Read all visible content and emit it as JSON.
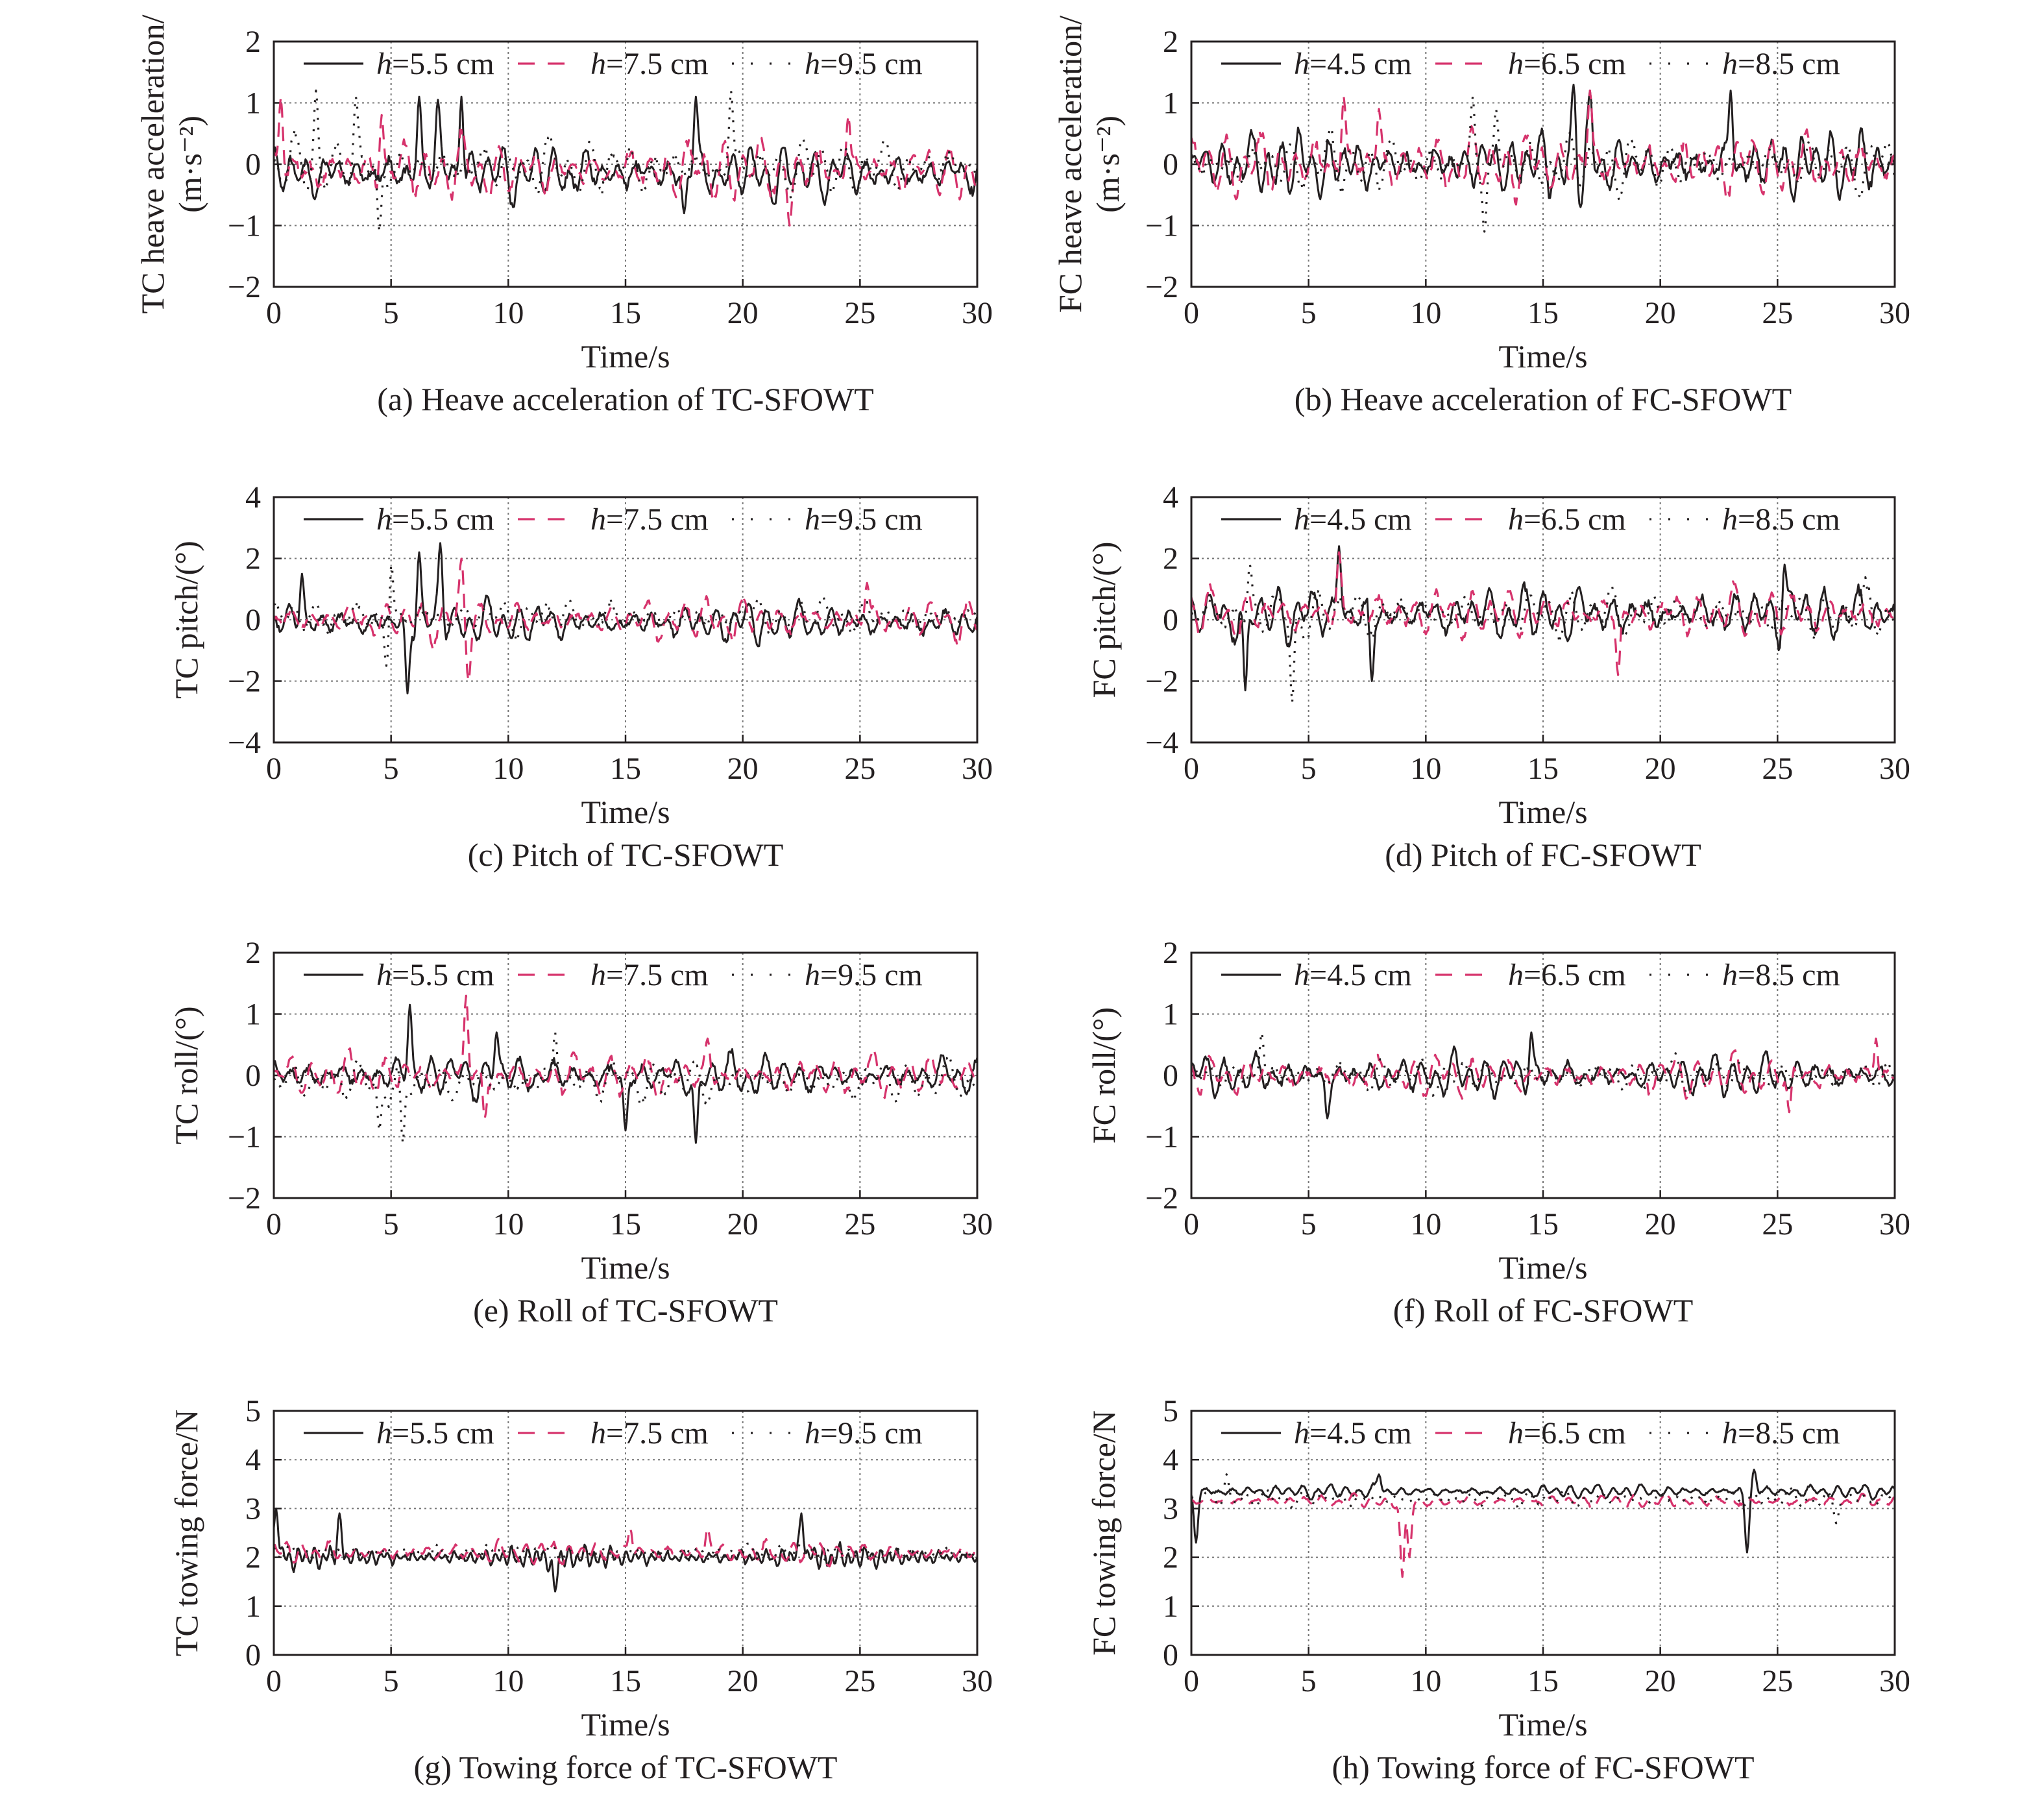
{
  "panels": [
    {
      "caption": "(a) Heave acceleration of TC-SFOWT",
      "chart_data": {
        "type": "line",
        "ylabel_line1": "TC heave acceleration/",
        "ylabel_line2": "(m·s⁻²)",
        "xlabel": "Time/s",
        "xlim": [
          0,
          30
        ],
        "ylim": [
          -2,
          2
        ],
        "xticks": [
          "0",
          "5",
          "10",
          "15",
          "20",
          "25",
          "30"
        ],
        "yticks": [
          "−2",
          "−1",
          "0",
          "1",
          "2"
        ],
        "legend_position": "top",
        "grid": true,
        "series": [
          {
            "name": "h=5.5 cm",
            "style": "solid",
            "color": "#231f20",
            "amplitude": 0.4,
            "mean": -0.15,
            "period": 0.7,
            "seed": 11,
            "peaks": [
              [
                6.2,
                1.1
              ],
              [
                7.0,
                1.05
              ],
              [
                8.0,
                1.1
              ],
              [
                18.0,
                1.1
              ],
              [
                17.5,
                -0.8
              ]
            ]
          },
          {
            "name": "h=7.5 cm",
            "style": "dashed",
            "color": "#d6336c",
            "amplitude": 0.45,
            "mean": -0.1,
            "period": 0.8,
            "seed": 23,
            "peaks": [
              [
                0.3,
                1.1
              ],
              [
                4.6,
                0.8
              ],
              [
                24.5,
                0.8
              ],
              [
                22.0,
                -1.0
              ]
            ]
          },
          {
            "name": "h=9.5 cm",
            "style": "dotted",
            "color": "#231f20",
            "amplitude": 0.4,
            "mean": -0.05,
            "period": 0.9,
            "seed": 37,
            "peaks": [
              [
                1.8,
                1.2
              ],
              [
                3.5,
                1.1
              ],
              [
                19.5,
                1.2
              ],
              [
                4.5,
                -1.1
              ]
            ]
          }
        ]
      }
    },
    {
      "caption": "(b) Heave acceleration of FC-SFOWT",
      "chart_data": {
        "type": "line",
        "ylabel_line1": "FC heave acceleration/",
        "ylabel_line2": "(m·s⁻²)",
        "xlabel": "Time/s",
        "xlim": [
          0,
          30
        ],
        "ylim": [
          -2,
          2
        ],
        "xticks": [
          "0",
          "5",
          "10",
          "15",
          "20",
          "25",
          "30"
        ],
        "yticks": [
          "−2",
          "−1",
          "0",
          "1",
          "2"
        ],
        "legend_position": "top",
        "grid": true,
        "series": [
          {
            "name": "h=4.5 cm",
            "style": "solid",
            "color": "#231f20",
            "amplitude": 0.45,
            "mean": 0.0,
            "period": 0.65,
            "seed": 41,
            "peaks": [
              [
                16.3,
                1.3
              ],
              [
                16.6,
                -0.7
              ],
              [
                23.0,
                1.2
              ],
              [
                17.0,
                1.2
              ]
            ]
          },
          {
            "name": "h=6.5 cm",
            "style": "dashed",
            "color": "#d6336c",
            "amplitude": 0.45,
            "mean": 0.0,
            "period": 0.75,
            "seed": 53,
            "peaks": [
              [
                6.5,
                1.1
              ],
              [
                8.0,
                0.9
              ],
              [
                17.0,
                1.2
              ]
            ]
          },
          {
            "name": "h=8.5 cm",
            "style": "dotted",
            "color": "#231f20",
            "amplitude": 0.4,
            "mean": 0.0,
            "period": 0.85,
            "seed": 67,
            "peaks": [
              [
                12.0,
                1.1
              ],
              [
                12.5,
                -1.1
              ],
              [
                13.0,
                0.9
              ]
            ]
          }
        ]
      }
    },
    {
      "caption": "(c) Pitch of TC-SFOWT",
      "chart_data": {
        "type": "line",
        "ylabel_line1": "TC pitch/(°)",
        "ylabel_line2": "",
        "xlabel": "Time/s",
        "xlim": [
          0,
          30
        ],
        "ylim": [
          -4,
          4
        ],
        "xticks": [
          "0",
          "5",
          "10",
          "15",
          "20",
          "25",
          "30"
        ],
        "yticks": [
          "−4",
          "−2",
          "0",
          "2",
          "4"
        ],
        "legend_position": "top",
        "grid": true,
        "series": [
          {
            "name": "h=5.5 cm",
            "style": "solid",
            "color": "#231f20",
            "amplitude": 0.6,
            "mean": -0.1,
            "period": 0.7,
            "seed": 71,
            "peaks": [
              [
                5.7,
                -2.4
              ],
              [
                6.2,
                2.2
              ],
              [
                7.1,
                2.5
              ],
              [
                1.2,
                1.5
              ]
            ]
          },
          {
            "name": "h=7.5 cm",
            "style": "dashed",
            "color": "#d6336c",
            "amplitude": 0.6,
            "mean": 0.0,
            "period": 0.8,
            "seed": 83,
            "peaks": [
              [
                8.0,
                2.0
              ],
              [
                8.3,
                -2.0
              ],
              [
                25.3,
                1.2
              ]
            ]
          },
          {
            "name": "h=9.5 cm",
            "style": "dotted",
            "color": "#231f20",
            "amplitude": 0.5,
            "mean": 0.1,
            "period": 0.9,
            "seed": 97,
            "peaks": [
              [
                5.0,
                2.0
              ],
              [
                4.8,
                -1.5
              ]
            ]
          }
        ]
      }
    },
    {
      "caption": "(d) Pitch of FC-SFOWT",
      "chart_data": {
        "type": "line",
        "ylabel_line1": "FC pitch/(°)",
        "ylabel_line2": "",
        "xlabel": "Time/s",
        "xlim": [
          0,
          30
        ],
        "ylim": [
          -4,
          4
        ],
        "xticks": [
          "0",
          "5",
          "10",
          "15",
          "20",
          "25",
          "30"
        ],
        "yticks": [
          "−4",
          "−2",
          "0",
          "2",
          "4"
        ],
        "legend_position": "top",
        "grid": true,
        "series": [
          {
            "name": "h=4.5 cm",
            "style": "solid",
            "color": "#231f20",
            "amplitude": 0.8,
            "mean": 0.2,
            "period": 0.75,
            "seed": 101,
            "peaks": [
              [
                6.3,
                2.4
              ],
              [
                2.3,
                -2.3
              ],
              [
                7.7,
                -2.0
              ],
              [
                25.3,
                1.8
              ]
            ]
          },
          {
            "name": "h=6.5 cm",
            "style": "dashed",
            "color": "#d6336c",
            "amplitude": 0.7,
            "mean": 0.2,
            "period": 0.8,
            "seed": 113,
            "peaks": [
              [
                6.3,
                2.2
              ],
              [
                18.2,
                -1.8
              ]
            ]
          },
          {
            "name": "h=8.5 cm",
            "style": "dotted",
            "color": "#231f20",
            "amplitude": 0.7,
            "mean": 0.2,
            "period": 0.9,
            "seed": 127,
            "peaks": [
              [
                2.5,
                1.8
              ],
              [
                4.3,
                -2.7
              ]
            ]
          }
        ]
      }
    },
    {
      "caption": "(e) Roll of TC-SFOWT",
      "chart_data": {
        "type": "line",
        "ylabel_line1": "TC roll/(°)",
        "ylabel_line2": "",
        "xlabel": "Time/s",
        "xlim": [
          0,
          30
        ],
        "ylim": [
          -2,
          2
        ],
        "xticks": [
          "0",
          "5",
          "10",
          "15",
          "20",
          "25",
          "30"
        ],
        "yticks": [
          "−2",
          "−1",
          "0",
          "1",
          "2"
        ],
        "legend_position": "top",
        "grid": true,
        "series": [
          {
            "name": "h=5.5 cm",
            "style": "solid",
            "color": "#231f20",
            "amplitude": 0.3,
            "mean": 0.0,
            "period": 0.75,
            "seed": 131,
            "peaks": [
              [
                5.8,
                1.15
              ],
              [
                18.0,
                -1.1
              ],
              [
                9.5,
                0.7
              ],
              [
                15.0,
                -0.9
              ]
            ]
          },
          {
            "name": "h=7.5 cm",
            "style": "dashed",
            "color": "#d6336c",
            "amplitude": 0.3,
            "mean": 0.0,
            "period": 0.8,
            "seed": 139,
            "peaks": [
              [
                8.2,
                1.3
              ],
              [
                9.0,
                -0.7
              ],
              [
                18.5,
                0.6
              ]
            ]
          },
          {
            "name": "h=9.5 cm",
            "style": "dotted",
            "color": "#231f20",
            "amplitude": 0.3,
            "mean": -0.1,
            "period": 0.9,
            "seed": 149,
            "peaks": [
              [
                5.5,
                -1.1
              ],
              [
                4.5,
                -0.9
              ],
              [
                12.0,
                0.7
              ]
            ]
          }
        ]
      }
    },
    {
      "caption": "(f) Roll of FC-SFOWT",
      "chart_data": {
        "type": "line",
        "ylabel_line1": "FC roll/(°)",
        "ylabel_line2": "",
        "xlabel": "Time/s",
        "xlim": [
          0,
          30
        ],
        "ylim": [
          -2,
          2
        ],
        "xticks": [
          "0",
          "5",
          "10",
          "15",
          "20",
          "25",
          "30"
        ],
        "yticks": [
          "−2",
          "−1",
          "0",
          "1",
          "2"
        ],
        "legend_position": "top",
        "grid": true,
        "series": [
          {
            "name": "h=4.5 cm",
            "style": "solid",
            "color": "#231f20",
            "amplitude": 0.3,
            "mean": 0.0,
            "period": 0.7,
            "seed": 151,
            "peaks": [
              [
                14.5,
                0.7
              ],
              [
                5.8,
                -0.7
              ]
            ]
          },
          {
            "name": "h=6.5 cm",
            "style": "dashed",
            "color": "#d6336c",
            "amplitude": 0.3,
            "mean": 0.0,
            "period": 0.8,
            "seed": 157,
            "peaks": [
              [
                29.2,
                0.6
              ],
              [
                25.5,
                -0.6
              ]
            ]
          },
          {
            "name": "h=8.5 cm",
            "style": "dotted",
            "color": "#231f20",
            "amplitude": 0.25,
            "mean": 0.0,
            "period": 0.9,
            "seed": 163,
            "peaks": [
              [
                3.0,
                0.7
              ]
            ]
          }
        ]
      }
    },
    {
      "caption": "(g) Towing force of TC-SFOWT",
      "chart_data": {
        "type": "line",
        "ylabel_line1": "TC towing force/N",
        "ylabel_line2": "",
        "xlabel": "Time/s",
        "xlim": [
          0,
          30
        ],
        "ylim": [
          0,
          5
        ],
        "xticks": [
          "0",
          "5",
          "10",
          "15",
          "20",
          "25",
          "30"
        ],
        "yticks": [
          "0",
          "1",
          "2",
          "3",
          "4",
          "5"
        ],
        "legend_position": "top",
        "grid": true,
        "series": [
          {
            "name": "h=5.5 cm",
            "style": "solid",
            "color": "#231f20",
            "amplitude": 0.2,
            "mean": 2.0,
            "period": 0.35,
            "seed": 167,
            "peaks": [
              [
                0.1,
                3.0
              ],
              [
                22.5,
                2.9
              ],
              [
                12.0,
                1.3
              ],
              [
                2.8,
                2.9
              ]
            ]
          },
          {
            "name": "h=7.5 cm",
            "style": "dashed",
            "color": "#d6336c",
            "amplitude": 0.2,
            "mean": 2.1,
            "period": 0.6,
            "seed": 173,
            "peaks": [
              [
                15.2,
                2.6
              ],
              [
                18.5,
                2.6
              ]
            ]
          },
          {
            "name": "h=9.5 cm",
            "style": "dotted",
            "color": "#231f20",
            "amplitude": 0.15,
            "mean": 2.1,
            "period": 0.7,
            "seed": 179,
            "peaks": []
          }
        ]
      }
    },
    {
      "caption": "(h) Towing force of FC-SFOWT",
      "chart_data": {
        "type": "line",
        "ylabel_line1": "FC towing force/N",
        "ylabel_line2": "",
        "xlabel": "Time/s",
        "xlim": [
          0,
          30
        ],
        "ylim": [
          0,
          5
        ],
        "xticks": [
          "0",
          "5",
          "10",
          "15",
          "20",
          "25",
          "30"
        ],
        "yticks": [
          "0",
          "1",
          "2",
          "3",
          "4",
          "5"
        ],
        "legend_position": "top",
        "grid": true,
        "series": [
          {
            "name": "h=4.5 cm",
            "style": "solid",
            "color": "#231f20",
            "amplitude": 0.12,
            "mean": 3.35,
            "period": 0.6,
            "seed": 181,
            "peaks": [
              [
                0.2,
                2.3
              ],
              [
                24.0,
                3.8
              ],
              [
                23.7,
                2.1
              ],
              [
                8.0,
                3.7
              ]
            ]
          },
          {
            "name": "h=6.5 cm",
            "style": "dashed",
            "color": "#d6336c",
            "amplitude": 0.12,
            "mean": 3.15,
            "period": 0.7,
            "seed": 191,
            "peaks": [
              [
                9.0,
                1.6
              ],
              [
                9.3,
                2.0
              ]
            ]
          },
          {
            "name": "h=8.5 cm",
            "style": "dotted",
            "color": "#231f20",
            "amplitude": 0.15,
            "mean": 3.2,
            "period": 0.8,
            "seed": 193,
            "peaks": [
              [
                1.5,
                3.7
              ],
              [
                27.5,
                2.7
              ]
            ]
          }
        ]
      }
    }
  ]
}
